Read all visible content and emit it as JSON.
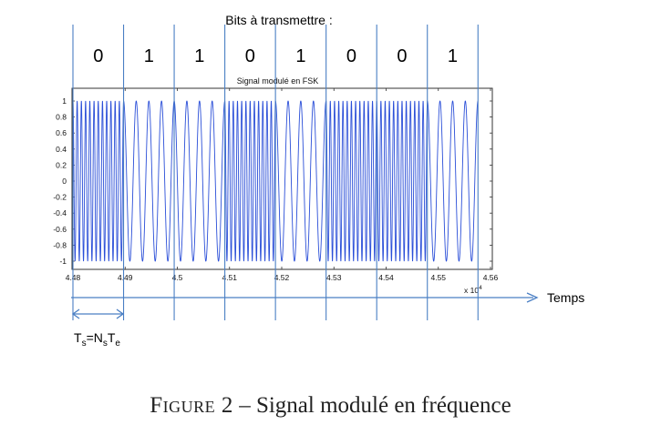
{
  "header": {
    "bits_title": "Bits à transmettre :"
  },
  "bits": [
    "0",
    "1",
    "1",
    "0",
    "1",
    "0",
    "0",
    "1"
  ],
  "time_axis_label": "Temps",
  "period_label": {
    "t": "T",
    "t_sub": "s",
    "eq": "=N",
    "n_sub": "s",
    "t2": "T",
    "e_sub": "e"
  },
  "caption": {
    "figure_label": "Figure 2",
    "dash": " – ",
    "text": "Signal modulé en fréquence"
  },
  "chart_data": {
    "type": "line",
    "title": "Signal modulé en FSK",
    "xlabel": "",
    "ylabel": "",
    "x_multiplier": "x 10^4",
    "x_multiplier_base": "x 10",
    "x_multiplier_exp": "4",
    "xlim": [
      4.48,
      4.56
    ],
    "ylim": [
      -1.1,
      1.1
    ],
    "x_ticks": [
      4.48,
      4.49,
      4.5,
      4.51,
      4.52,
      4.53,
      4.54,
      4.55,
      4.56
    ],
    "x_tick_labels": [
      "4.48",
      "4.49",
      "4.5",
      "4.51",
      "4.52",
      "4.53",
      "4.54",
      "4.55",
      "4.56"
    ],
    "y_ticks": [
      1,
      0.8,
      0.6,
      0.4,
      0.2,
      0,
      -0.2,
      -0.4,
      -0.6,
      -0.8,
      -1
    ],
    "y_tick_labels": [
      "1",
      "0.8",
      "0.6",
      "0.4",
      "0.2",
      "0",
      "-0.2",
      "-0.4",
      "-0.6",
      "-0.8",
      "-1"
    ],
    "grid": false,
    "bit_duration": 0.0097,
    "bit_sequence": [
      0,
      1,
      1,
      0,
      1,
      0,
      0,
      1
    ],
    "cycles_per_bit": {
      "0": 12,
      "1": 4
    },
    "amplitude": 1,
    "series": [
      {
        "color": "#2b4fd8"
      }
    ]
  },
  "colors": {
    "guide_line": "#4a7fc4",
    "signal": "#2b4fd8",
    "frame": "#333333",
    "arrow": "#4a7fc4"
  }
}
